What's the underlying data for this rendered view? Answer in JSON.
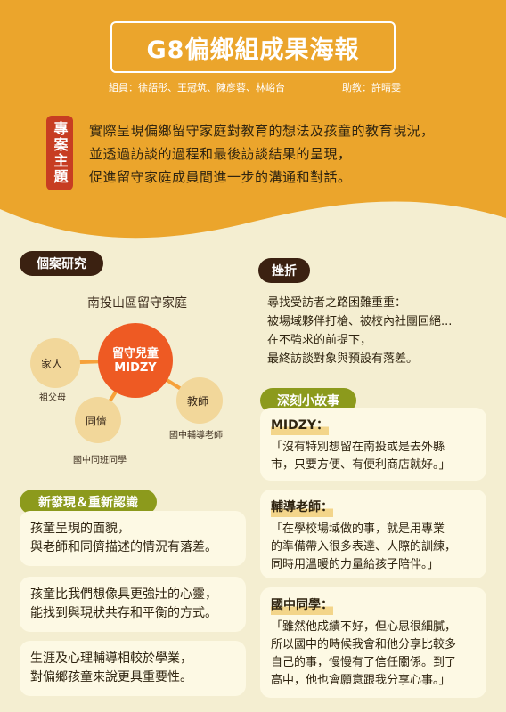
{
  "header": {
    "title": "G8偏鄉組成果海報",
    "members": "組員：徐語彤、王冠筑、陳彥蓉、林峪台",
    "advisor": "助教：許晴雯"
  },
  "theme": {
    "tag": "專案主題",
    "lines": [
      "實際呈現偏鄉留守家庭對教育的想法及孩童的教育現況，",
      "並透過訪談的過程和最後訪談結果的呈現，",
      "促進留守家庭成員間進一步的溝通和對話。"
    ]
  },
  "case_study": {
    "heading": "個案研究",
    "subtitle": "南投山區留守家庭",
    "center_label": "留守兒童",
    "center_name": "MIDZY",
    "family": "家人",
    "family_sub": "祖父母",
    "peer": "同儕",
    "peer_sub": "國中同班同學",
    "teacher": "教師",
    "teacher_sub": "國中輔導老師"
  },
  "setback": {
    "heading": "挫折",
    "lines": [
      "尋找受訪者之路困難重重：",
      "被場域夥伴打槍、被校內社團回絕...",
      "在不強求的前提下，",
      "最終訪談對象與預設有落差。"
    ]
  },
  "findings": {
    "heading": "新發現＆重新認識",
    "cards": [
      {
        "lines": [
          "孩童呈現的面貌，",
          "與老師和同儕描述的情況有落差。"
        ]
      },
      {
        "lines": [
          "孩童比我們想像具更強壯的心靈，",
          "能找到與現狀共存和平衡的方式。"
        ]
      },
      {
        "lines": [
          "生涯及心理輔導相較於學業，",
          "對偏鄉孩童來說更具重要性。"
        ]
      }
    ]
  },
  "stories": {
    "heading": "深刻小故事",
    "items": [
      {
        "speaker": "MIDZY：",
        "lines": [
          "「沒有特別想留在南投或是去外縣",
          "市，只要方便、有便利商店就好。」"
        ]
      },
      {
        "speaker": "輔導老師：",
        "lines": [
          "「在學校場域做的事，就是用專業",
          "的準備帶入很多表達、人際的訓練，",
          "同時用溫暖的力量給孩子陪伴。」"
        ]
      },
      {
        "speaker": "國中同學：",
        "lines": [
          "「雖然他成績不好，但心思很細膩，",
          "所以國中的時候我會和他分享比較多",
          "自己的事，慢慢有了信任關係。到了",
          "高中，他也會願意跟我分享心事。」"
        ]
      }
    ]
  },
  "colors": {
    "orange": "#eba52c",
    "cream": "#f4eed1",
    "dark_brown": "#3b2111",
    "olive": "#8c9a1c",
    "red": "#c73d22"
  }
}
